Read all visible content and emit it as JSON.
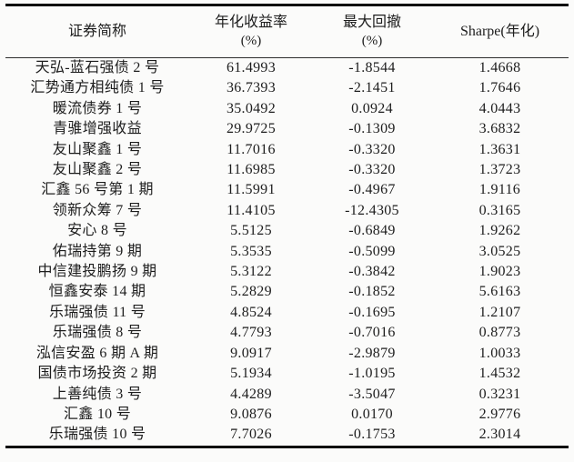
{
  "chart_data": {
    "type": "table",
    "columns": [
      {
        "label": "证券简称",
        "sublabel": ""
      },
      {
        "label": "年化收益率",
        "sublabel": "(%)"
      },
      {
        "label": "最大回撤",
        "sublabel": "(%)"
      },
      {
        "label": "Sharpe(年化)",
        "sublabel": ""
      }
    ],
    "rows": [
      [
        "天弘-蓝石强债 2 号",
        "61.4993",
        "-1.8544",
        "1.4668"
      ],
      [
        "汇势通方相纯债 1 号",
        "36.7393",
        "-2.1451",
        "1.7646"
      ],
      [
        "暖流债券 1 号",
        "35.0492",
        "0.0924",
        "4.0443"
      ],
      [
        "青骓增强收益",
        "29.9725",
        "-0.1309",
        "3.6832"
      ],
      [
        "友山聚鑫 1 号",
        "11.7016",
        "-0.3320",
        "1.3631"
      ],
      [
        "友山聚鑫 2 号",
        "11.6985",
        "-0.3320",
        "1.3723"
      ],
      [
        "汇鑫 56 号第 1 期",
        "11.5991",
        "-0.4967",
        "1.9116"
      ],
      [
        "领新众筹 7 号",
        "11.4105",
        "-12.4305",
        "0.3165"
      ],
      [
        "安心 8 号",
        "5.5125",
        "-0.6849",
        "1.9262"
      ],
      [
        "佑瑞持第 9 期",
        "5.3535",
        "-0.5099",
        "3.0525"
      ],
      [
        "中信建投鹏扬 9 期",
        "5.3122",
        "-0.3842",
        "1.9023"
      ],
      [
        "恒鑫安泰 14 期",
        "5.2829",
        "-0.1852",
        "5.6163"
      ],
      [
        "乐瑞强债 11 号",
        "4.8524",
        "-0.1695",
        "1.2107"
      ],
      [
        "乐瑞强债 8 号",
        "4.7793",
        "-0.7016",
        "0.8773"
      ],
      [
        "泓信安盈 6 期 A 期",
        "9.0917",
        "-2.9879",
        "1.0033"
      ],
      [
        "国债市场投资 2 期",
        "5.1934",
        "-1.0195",
        "1.4532"
      ],
      [
        "上善纯债 3 号",
        "4.4289",
        "-3.5047",
        "0.3231"
      ],
      [
        "汇鑫 10 号",
        "9.0876",
        "0.0170",
        "2.9776"
      ],
      [
        "乐瑞强债 10 号",
        "7.7026",
        "-0.1753",
        "2.3014"
      ]
    ]
  }
}
